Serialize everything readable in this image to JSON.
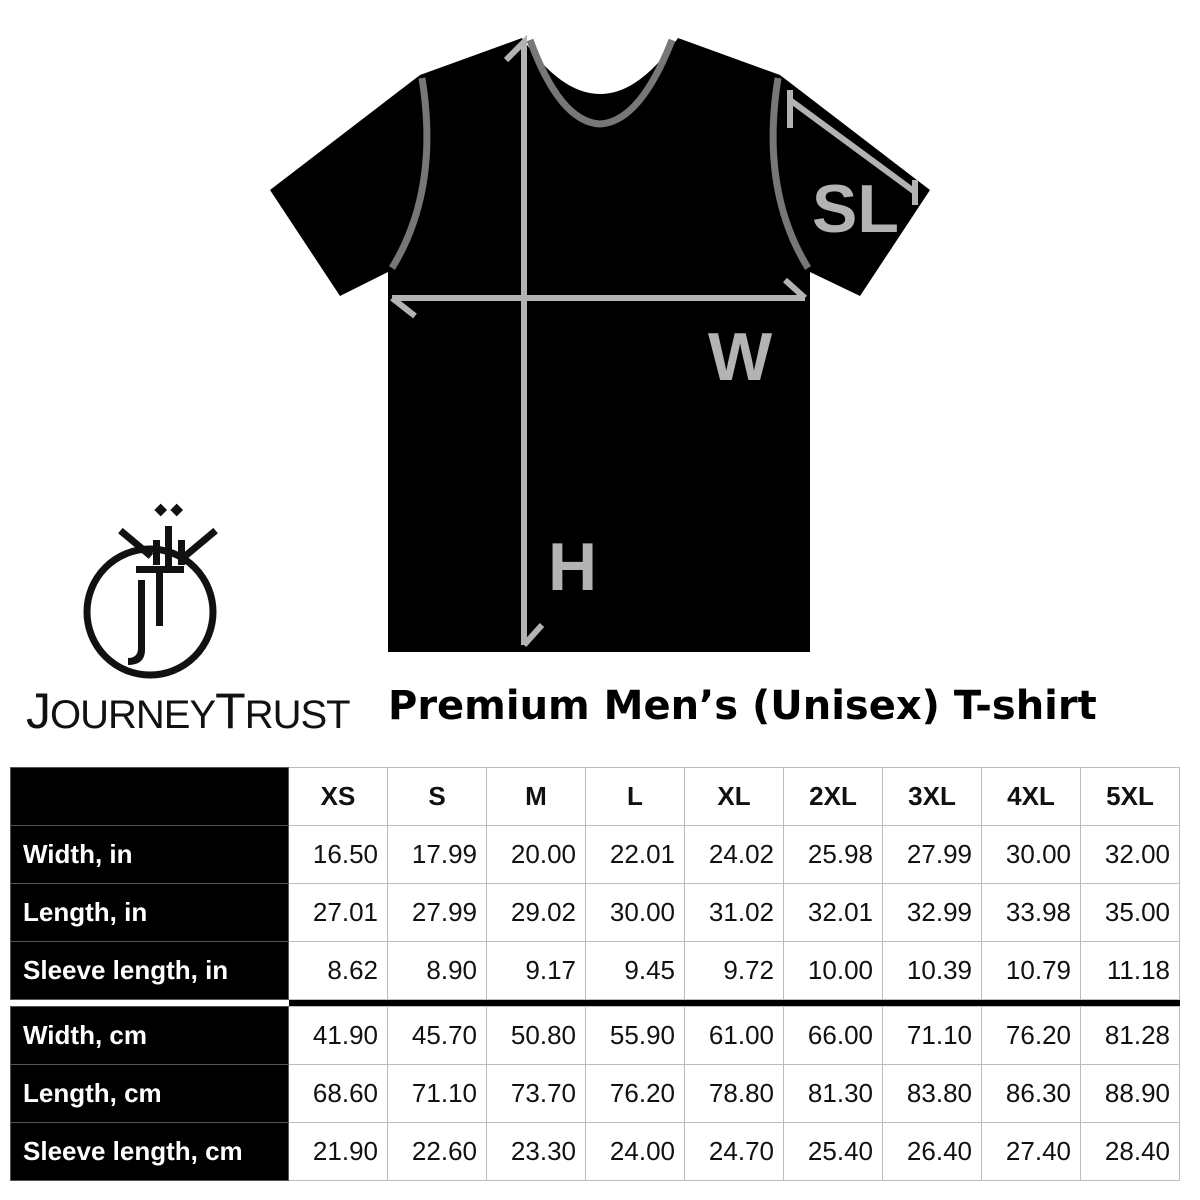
{
  "brand": {
    "name": "JourneyTrust",
    "logo_text": "JOURNEYTRUST",
    "monogram": "JT"
  },
  "diagram": {
    "labels": {
      "sleeve": "SL",
      "width": "W",
      "height": "H"
    },
    "shirt_color": "#000000",
    "guide_color": "#b3b3b3"
  },
  "title": "Premium Men’s (Unisex) T-shirt",
  "size_table": {
    "sizes": [
      "XS",
      "S",
      "M",
      "L",
      "XL",
      "2XL",
      "3XL",
      "4XL",
      "5XL"
    ],
    "rows_in": [
      {
        "label": "Width, in",
        "values": [
          "16.50",
          "17.99",
          "20.00",
          "22.01",
          "24.02",
          "25.98",
          "27.99",
          "30.00",
          "32.00"
        ]
      },
      {
        "label": "Length, in",
        "values": [
          "27.01",
          "27.99",
          "29.02",
          "30.00",
          "31.02",
          "32.01",
          "32.99",
          "33.98",
          "35.00"
        ]
      },
      {
        "label": "Sleeve length, in",
        "values": [
          "8.62",
          "8.90",
          "9.17",
          "9.45",
          "9.72",
          "10.00",
          "10.39",
          "10.79",
          "11.18"
        ]
      }
    ],
    "rows_cm": [
      {
        "label": "Width, cm",
        "values": [
          "41.90",
          "45.70",
          "50.80",
          "55.90",
          "61.00",
          "66.00",
          "71.10",
          "76.20",
          "81.28"
        ]
      },
      {
        "label": "Length, cm",
        "values": [
          "68.60",
          "71.10",
          "73.70",
          "76.20",
          "78.80",
          "81.30",
          "83.80",
          "86.30",
          "88.90"
        ]
      },
      {
        "label": "Sleeve length, cm",
        "values": [
          "21.90",
          "22.60",
          "23.30",
          "24.00",
          "24.70",
          "25.40",
          "26.40",
          "27.40",
          "28.40"
        ]
      }
    ]
  }
}
